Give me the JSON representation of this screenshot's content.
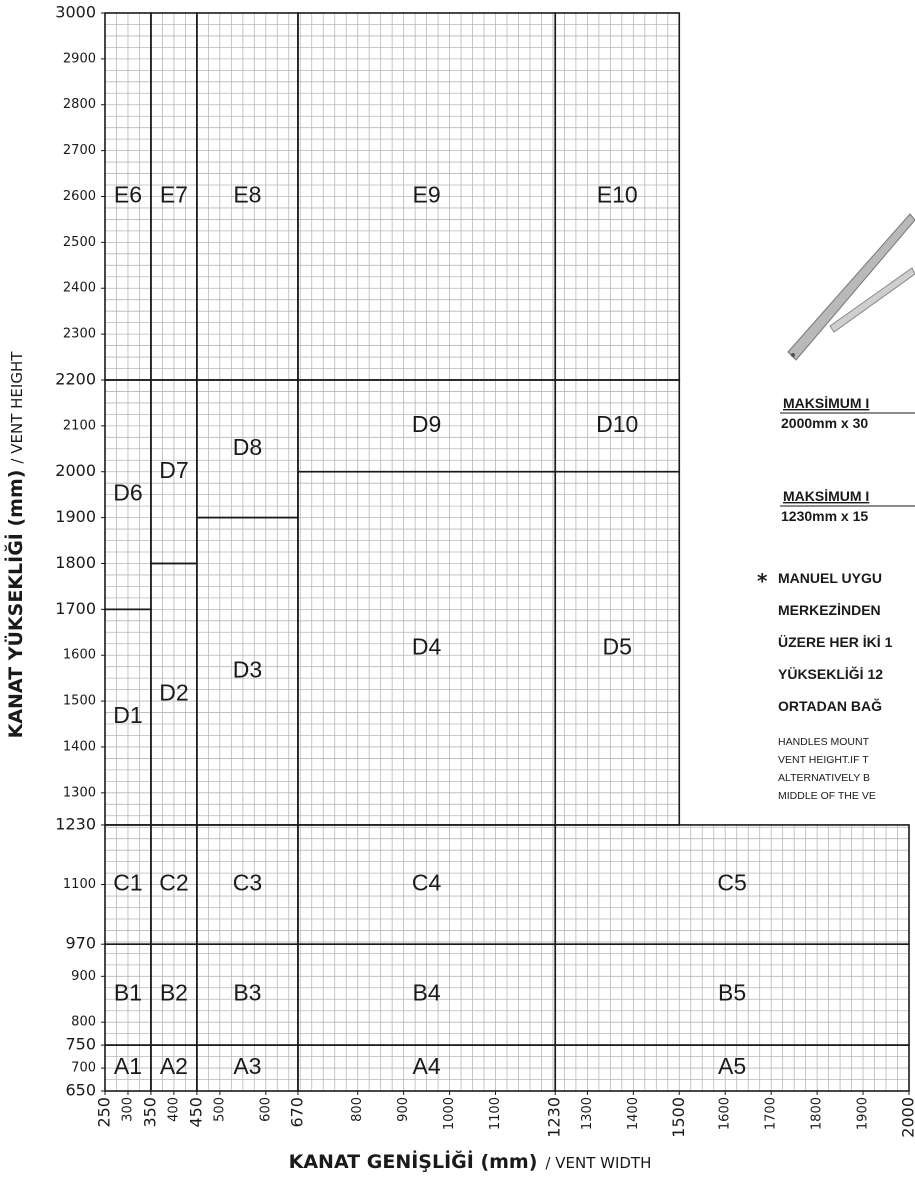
{
  "chart_data": {
    "type": "zone",
    "x_label": "KANAT GENİŞLİĞİ (mm)",
    "x_label_note": "/ VENT WIDTH",
    "y_label": "KANAT YÜKSEKLİĞİ (mm)",
    "y_label_note": "/ VENT HEIGHT",
    "xlim": [
      250,
      2000
    ],
    "ylim": [
      650,
      3000
    ],
    "xticks": [
      250,
      300,
      350,
      400,
      450,
      500,
      600,
      670,
      800,
      900,
      1000,
      1100,
      1230,
      1300,
      1400,
      1500,
      1600,
      1700,
      1800,
      1900,
      2000
    ],
    "yticks": [
      3000,
      2900,
      2800,
      2700,
      2600,
      2500,
      2400,
      2300,
      2200,
      2100,
      2000,
      1900,
      1800,
      1700,
      1600,
      1500,
      1400,
      1300,
      1230,
      1100,
      970,
      900,
      800,
      750,
      700,
      650
    ],
    "grid": true,
    "grid_step": 25,
    "grid_color": "#b8b8b8",
    "line_color": "#1a1a1a",
    "zones": [
      {
        "label": "A1",
        "x": [
          250,
          350
        ],
        "y": [
          650,
          750
        ]
      },
      {
        "label": "A2",
        "x": [
          350,
          450
        ],
        "y": [
          650,
          750
        ]
      },
      {
        "label": "A3",
        "x": [
          450,
          670
        ],
        "y": [
          650,
          750
        ]
      },
      {
        "label": "A4",
        "x": [
          670,
          1230
        ],
        "y": [
          650,
          750
        ]
      },
      {
        "label": "A5",
        "x": [
          1230,
          2000
        ],
        "y": [
          650,
          750
        ]
      },
      {
        "label": "B1",
        "x": [
          250,
          350
        ],
        "y": [
          750,
          970
        ]
      },
      {
        "label": "B2",
        "x": [
          350,
          450
        ],
        "y": [
          750,
          970
        ]
      },
      {
        "label": "B3",
        "x": [
          450,
          670
        ],
        "y": [
          750,
          970
        ]
      },
      {
        "label": "B4",
        "x": [
          670,
          1230
        ],
        "y": [
          750,
          970
        ]
      },
      {
        "label": "B5",
        "x": [
          1230,
          2000
        ],
        "y": [
          750,
          970
        ]
      },
      {
        "label": "C1",
        "x": [
          250,
          350
        ],
        "y": [
          970,
          1230
        ]
      },
      {
        "label": "C2",
        "x": [
          350,
          450
        ],
        "y": [
          970,
          1230
        ]
      },
      {
        "label": "C3",
        "x": [
          450,
          670
        ],
        "y": [
          970,
          1230
        ]
      },
      {
        "label": "C4",
        "x": [
          670,
          1230
        ],
        "y": [
          970,
          1230
        ]
      },
      {
        "label": "C5",
        "x": [
          1230,
          2000
        ],
        "y": [
          970,
          1230
        ]
      },
      {
        "label": "D1",
        "x": [
          250,
          350
        ],
        "y": [
          1230,
          1700
        ]
      },
      {
        "label": "D2",
        "x": [
          350,
          450
        ],
        "y": [
          1230,
          1800
        ]
      },
      {
        "label": "D3",
        "x": [
          450,
          670
        ],
        "y": [
          1230,
          1900
        ]
      },
      {
        "label": "D4",
        "x": [
          670,
          1230
        ],
        "y": [
          1230,
          2000
        ]
      },
      {
        "label": "D5",
        "x": [
          1230,
          1500
        ],
        "y": [
          1230,
          2000
        ]
      },
      {
        "label": "D6",
        "x": [
          250,
          350
        ],
        "y": [
          1700,
          2200
        ]
      },
      {
        "label": "D7",
        "x": [
          350,
          450
        ],
        "y": [
          1800,
          2200
        ]
      },
      {
        "label": "D8",
        "x": [
          450,
          670
        ],
        "y": [
          1900,
          2200
        ]
      },
      {
        "label": "D9",
        "x": [
          670,
          1230
        ],
        "y": [
          2000,
          2200
        ]
      },
      {
        "label": "D10",
        "x": [
          1230,
          1500
        ],
        "y": [
          2000,
          2200
        ]
      },
      {
        "label": "E6",
        "x": [
          250,
          350
        ],
        "y": [
          2200,
          3000
        ]
      },
      {
        "label": "E7",
        "x": [
          350,
          450
        ],
        "y": [
          2200,
          3000
        ]
      },
      {
        "label": "E8",
        "x": [
          450,
          670
        ],
        "y": [
          2200,
          3000
        ]
      },
      {
        "label": "E9",
        "x": [
          670,
          1230
        ],
        "y": [
          2200,
          3000
        ]
      },
      {
        "label": "E10",
        "x": [
          1230,
          1500
        ],
        "y": [
          2200,
          3000
        ]
      }
    ]
  },
  "side_panel": {
    "max_1_title": "MAKSİMUM I",
    "max_1_value": "2000mm x 30",
    "max_2_title": "MAKSİMUM I",
    "max_2_value": "1230mm x 15",
    "note_mark": "*",
    "note_lines": [
      "MANUEL UYGU",
      "MERKEZİNDEN",
      "ÜZERE HER İKİ 1",
      "YÜKSEKLİĞİ 12",
      "ORTADAN BAĞ"
    ],
    "note_en_lines": [
      "HANDLES MOUNT",
      "VENT HEIGHT.IF T",
      "ALTERNATIVELY B",
      "MIDDLE OF THE VE"
    ]
  }
}
